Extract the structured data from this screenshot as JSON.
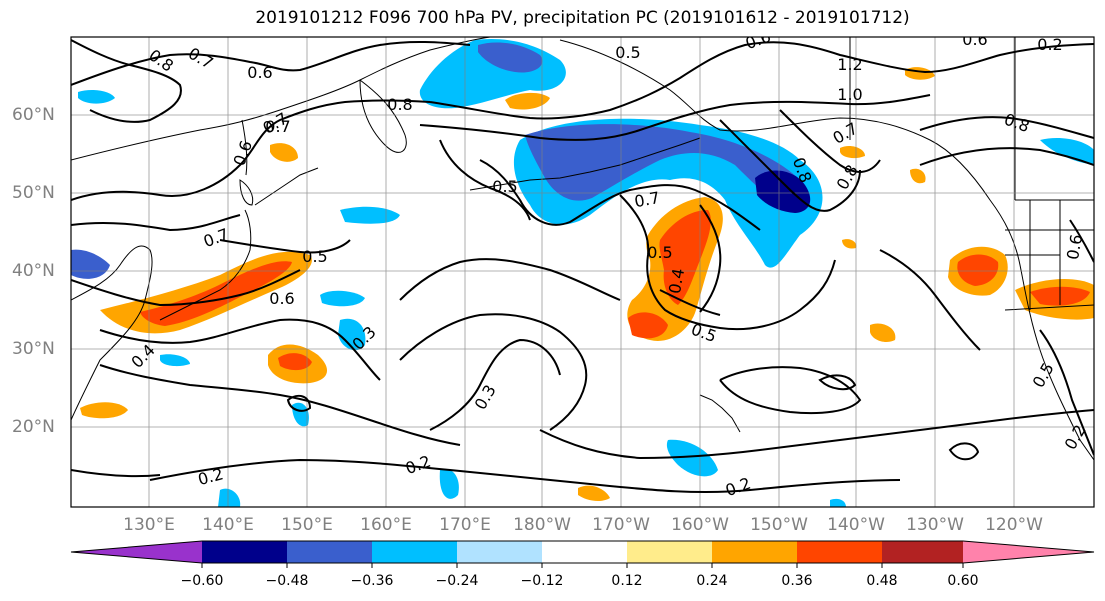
{
  "title": "2019101212 F096 700 hPa PV, precipitation PC (2019101612 - 2019101712)",
  "lat_labels": [
    "60°N",
    "50°N",
    "40°N",
    "30°N",
    "20°N"
  ],
  "lon_labels": [
    "130°E",
    "140°E",
    "150°E",
    "160°E",
    "170°E",
    "180°W",
    "170°W",
    "160°W",
    "150°W",
    "140°W",
    "130°W",
    "120°W"
  ],
  "colorbar": {
    "colors": [
      "#9932cc",
      "#00008b",
      "#3a5fcd",
      "#00bfff",
      "#b0e2ff",
      "#ffffff",
      "#ffec8b",
      "#ffa500",
      "#ff4500",
      "#b22222",
      "#ff82ab"
    ],
    "labels": [
      "−0.60",
      "−0.48",
      "−0.36",
      "−0.24",
      "−0.12",
      "0.12",
      "0.24",
      "0.36",
      "0.48",
      "0.60"
    ]
  },
  "contour_labels": [
    "0.8",
    "0.7",
    "0.6",
    "0.6",
    "0.5",
    "0.6",
    "1.2",
    "1.0",
    "0.7",
    "0.8",
    "0.8",
    "0.8",
    "0.7",
    "0.7",
    "0.5",
    "0.7",
    "0.5",
    "0.4",
    "0.6",
    "0.8",
    "0.5",
    "0.6",
    "0.7",
    "0.4",
    "0.3",
    "0.5",
    "0.3",
    "0.2",
    "0.2",
    "0.2",
    "0.5",
    "0.2",
    "0.6",
    "0.2"
  ],
  "precip_pc_levels": [
    -0.6,
    -0.48,
    -0.36,
    -0.24,
    -0.12,
    0.12,
    0.24,
    0.36,
    0.48,
    0.6
  ],
  "precip_pc_extend": "both",
  "gridlines": true
}
